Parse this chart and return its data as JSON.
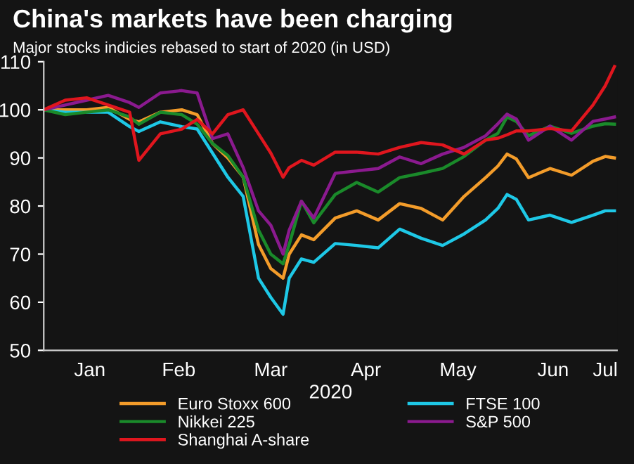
{
  "chart_data": {
    "type": "line",
    "title": "China's markets have been charging",
    "subtitle": "Major stocks indicies rebased to start of 2020 (in USD)",
    "xlabel": "2020",
    "x": [
      "2020-01-01",
      "2020-01-08",
      "2020-01-15",
      "2020-01-22",
      "2020-01-29",
      "2020-02-01",
      "2020-02-08",
      "2020-02-15",
      "2020-02-20",
      "2020-02-25",
      "2020-03-01",
      "2020-03-06",
      "2020-03-11",
      "2020-03-15",
      "2020-03-19",
      "2020-03-21",
      "2020-03-25",
      "2020-03-29",
      "2020-04-05",
      "2020-04-12",
      "2020-04-19",
      "2020-04-26",
      "2020-05-03",
      "2020-05-10",
      "2020-05-17",
      "2020-05-24",
      "2020-05-28",
      "2020-05-31",
      "2020-06-03",
      "2020-06-07",
      "2020-06-14",
      "2020-06-21",
      "2020-06-28",
      "2020-07-02",
      "2020-07-05"
    ],
    "series": [
      {
        "name": "Euro Stoxx 600",
        "color": "#f39c2a",
        "values": [
          100,
          100,
          100,
          100.5,
          98,
          97.5,
          99.5,
          100,
          99,
          93,
          90,
          86,
          72,
          67,
          65,
          70,
          74,
          73,
          77.5,
          79,
          77.1,
          80.5,
          79.5,
          77.1,
          82,
          85.9,
          88.3,
          90.8,
          89.8,
          85.9,
          87.8,
          86.4,
          89.3,
          90.3,
          90
        ]
      },
      {
        "name": "FTSE 100",
        "color": "#1ec8e6",
        "values": [
          100,
          99.5,
          99.5,
          99.5,
          96.5,
          95.5,
          97.5,
          96.5,
          96,
          91,
          86,
          82,
          65,
          61,
          57.5,
          65,
          69,
          68.3,
          72.2,
          71.8,
          71.3,
          75.2,
          73.3,
          71.8,
          74.2,
          77.1,
          79.5,
          82.4,
          81.4,
          77.1,
          78.1,
          76.6,
          78.1,
          79,
          79
        ]
      },
      {
        "name": "Nikkei 225",
        "color": "#1a8a2a",
        "values": [
          100,
          99,
          99.5,
          100,
          98.5,
          97,
          99.5,
          99,
          97,
          93,
          90.5,
          86,
          75,
          70,
          68,
          72,
          81,
          76.5,
          82.4,
          84.9,
          82.9,
          85.9,
          86.8,
          87.8,
          90.3,
          93.7,
          95.1,
          98.5,
          97.6,
          94.6,
          96.6,
          95.1,
          96.6,
          97.1,
          97
        ]
      },
      {
        "name": "S&P 500",
        "color": "#8b1a8f",
        "values": [
          100,
          101,
          102,
          103,
          101.5,
          100.5,
          103.5,
          104,
          103.5,
          94,
          95,
          88,
          79,
          76,
          70,
          75,
          81,
          77.5,
          86.8,
          87.3,
          87.8,
          90.2,
          88.8,
          90.8,
          92.2,
          94.6,
          97.1,
          99.1,
          98.1,
          93.7,
          96.6,
          93.7,
          97.6,
          98.1,
          98.5
        ]
      },
      {
        "name": "Shanghai A-share",
        "color": "#e0161e",
        "values": [
          100,
          102,
          102.5,
          101,
          99.5,
          89.5,
          95,
          96,
          98,
          95,
          99,
          100,
          95,
          91,
          86,
          88,
          89.5,
          88.5,
          91.2,
          91.2,
          90.8,
          92.2,
          93.2,
          92.7,
          90.8,
          93.7,
          94.1,
          94.8,
          95.6,
          95.6,
          96.1,
          95.6,
          101,
          105,
          109
        ]
      }
    ],
    "xlim": [
      "2020-01-01",
      "2020-07-06"
    ],
    "xticks": [
      {
        "value": "2020-01-16",
        "label": "Jan"
      },
      {
        "value": "2020-02-14",
        "label": "Feb"
      },
      {
        "value": "2020-03-15",
        "label": "Mar"
      },
      {
        "value": "2020-04-15",
        "label": "Apr"
      },
      {
        "value": "2020-05-15",
        "label": "May"
      },
      {
        "value": "2020-06-15",
        "label": "Jun"
      },
      {
        "value": "2020-07-02",
        "label": "Jul"
      }
    ],
    "ylim": [
      50,
      110
    ],
    "yticks": [
      50,
      60,
      70,
      80,
      90,
      100,
      110
    ],
    "grid": false,
    "legend": "bottom",
    "marker": "none",
    "line_style": "solid"
  }
}
